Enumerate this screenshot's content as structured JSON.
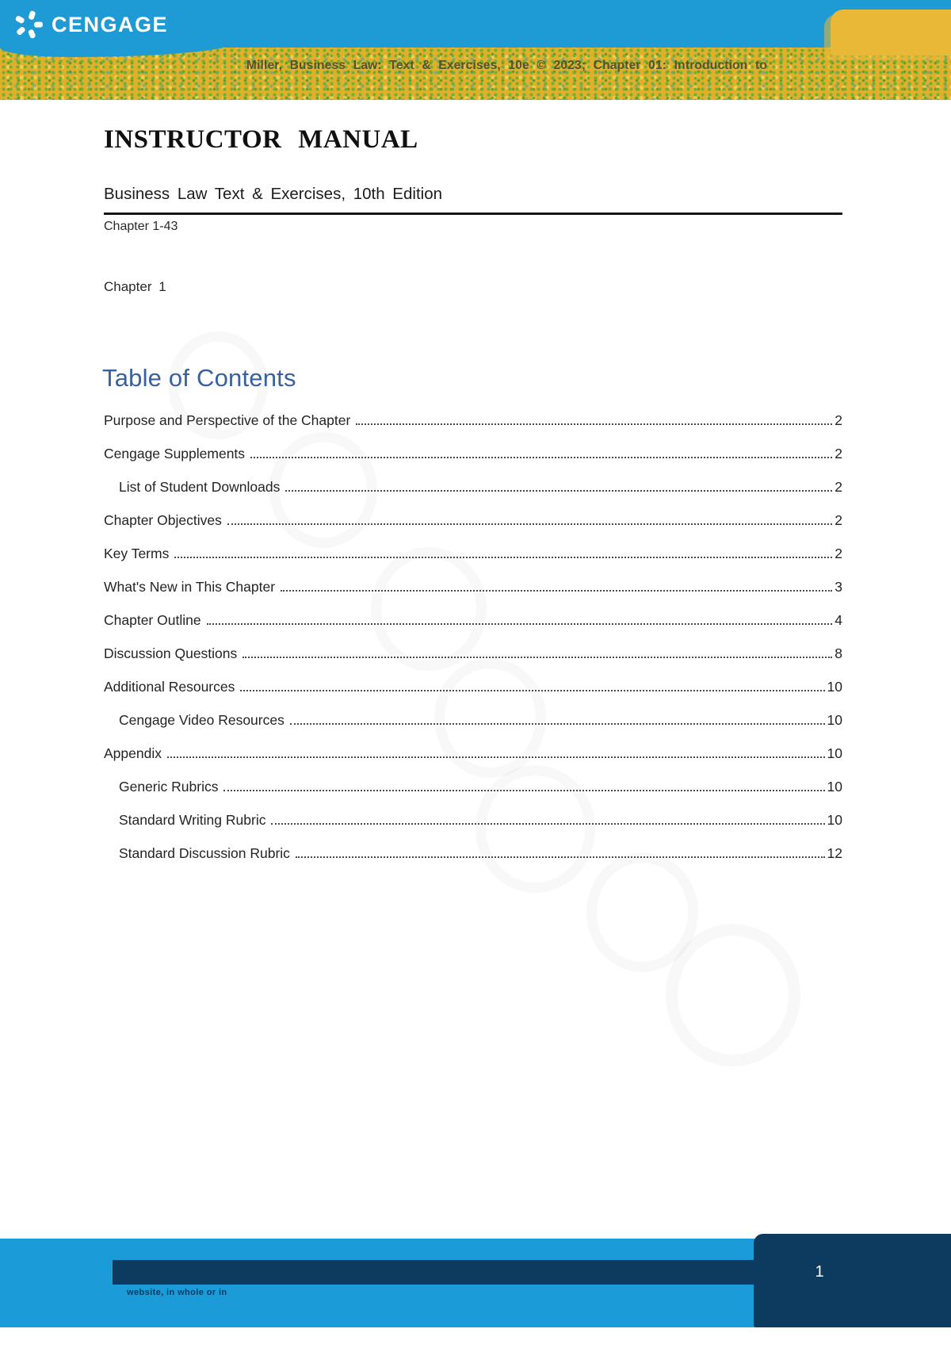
{
  "header": {
    "brand": "CENGAGE",
    "course_line": "Miller, Business Law: Text & Exercises, 10e © 2023; Chapter 01: Introduction to"
  },
  "document": {
    "title": "INSTRUCTOR MANUAL",
    "subtitle": "Business Law Text & Exercises, 10th Edition",
    "chapter_range": "Chapter 1-43",
    "chapter_label": "Chapter 1"
  },
  "toc": {
    "heading": "Table of Contents",
    "entries": [
      {
        "label": "Purpose and Perspective of the Chapter",
        "page": "2",
        "indent": false
      },
      {
        "label": "Cengage Supplements",
        "page": "2",
        "indent": false
      },
      {
        "label": "List of Student Downloads",
        "page": "2",
        "indent": true
      },
      {
        "label": "Chapter Objectives",
        "page": "2",
        "indent": false
      },
      {
        "label": "Key Terms",
        "page": "2",
        "indent": false
      },
      {
        "label": "What's New in This Chapter",
        "page": "3",
        "indent": false
      },
      {
        "label": "Chapter Outline",
        "page": "4",
        "indent": false
      },
      {
        "label": "Discussion Questions",
        "page": "8",
        "indent": false
      },
      {
        "label": "Additional Resources",
        "page": "10",
        "indent": false
      },
      {
        "label": "Cengage Video Resources",
        "page": "10",
        "indent": true
      },
      {
        "label": "Appendix",
        "page": "10",
        "indent": false
      },
      {
        "label": "Generic Rubrics",
        "page": "10",
        "indent": true
      },
      {
        "label": "Standard Writing Rubric",
        "page": "10",
        "indent": true
      },
      {
        "label": "Standard Discussion Rubric",
        "page": "12",
        "indent": true
      }
    ]
  },
  "footer": {
    "page_number": "1",
    "partial_text": "website, in whole or in"
  },
  "colors": {
    "header_blue": "#1e9bd5",
    "stripe_yellow": "#e2af2b",
    "stripe_green": "#68b034",
    "footer_blue": "#1b9cd9",
    "footer_navy": "#0d3a5f",
    "toc_heading_blue": "#38619d"
  }
}
